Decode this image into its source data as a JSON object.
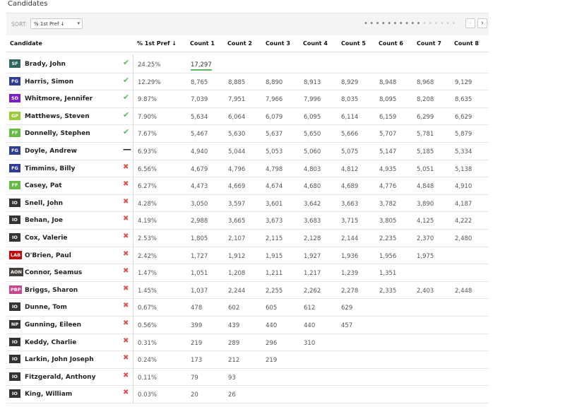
{
  "title": "Candidates",
  "sort": {
    "label": "SORT:",
    "value": "% 1st Pref ↓",
    "caret": "▾"
  },
  "pager": {
    "prev": "‹",
    "next": "›"
  },
  "headers": [
    "Candidate",
    "% 1st Pref ↓",
    "Count 1",
    "Count 2",
    "Count 3",
    "Count 4",
    "Count 5",
    "Count 6",
    "Count 7",
    "Count 8"
  ],
  "status_icons": {
    "elected": "✔",
    "excluded": "✖",
    "pending": "—"
  },
  "party_colors": {
    "SF": "#326760",
    "FG": "#303d97",
    "SD": "#7a20c9",
    "GP": "#99cc33",
    "FF": "#66bb44",
    "IO": "#333333",
    "LAB": "#cc0000",
    "AON": "#44413b",
    "PBP": "#c8468c",
    "NP": "#333333"
  },
  "candidates": [
    {
      "party": "SF",
      "name": "Brady, John",
      "status": "elected",
      "pref": "24.25%",
      "counts": [
        "17,297"
      ]
    },
    {
      "party": "FG",
      "name": "Harris, Simon",
      "status": "elected",
      "pref": "12.29%",
      "counts": [
        "8,765",
        "8,885",
        "8,890",
        "8,913",
        "8,929",
        "8,948",
        "8,968",
        "9,129"
      ]
    },
    {
      "party": "SD",
      "name": "Whitmore, Jennifer",
      "status": "elected",
      "pref": "9.87%",
      "counts": [
        "7,039",
        "7,951",
        "7,966",
        "7,996",
        "8,035",
        "8,095",
        "8,208",
        "8,635"
      ]
    },
    {
      "party": "GP",
      "name": "Matthews, Steven",
      "status": "elected",
      "pref": "7.90%",
      "counts": [
        "5,634",
        "6,064",
        "6,079",
        "6,095",
        "6,114",
        "6,159",
        "6,299",
        "6,629"
      ]
    },
    {
      "party": "FF",
      "name": "Donnelly, Stephen",
      "status": "elected",
      "pref": "7.67%",
      "counts": [
        "5,467",
        "5,630",
        "5,637",
        "5,650",
        "5,666",
        "5,707",
        "5,781",
        "5,879"
      ]
    },
    {
      "party": "FG",
      "name": "Doyle, Andrew",
      "status": "pending",
      "pref": "6.93%",
      "counts": [
        "4,940",
        "5,044",
        "5,053",
        "5,060",
        "5,075",
        "5,147",
        "5,185",
        "5,334"
      ]
    },
    {
      "party": "FG",
      "name": "Timmins, Billy",
      "status": "excluded",
      "pref": "6.56%",
      "counts": [
        "4,679",
        "4,796",
        "4,798",
        "4,803",
        "4,812",
        "4,935",
        "5,051",
        "5,138"
      ]
    },
    {
      "party": "FF",
      "name": "Casey, Pat",
      "status": "excluded",
      "pref": "6.27%",
      "counts": [
        "4,473",
        "4,669",
        "4,674",
        "4,680",
        "4,689",
        "4,776",
        "4,848",
        "4,910"
      ]
    },
    {
      "party": "IO",
      "name": "Snell, John",
      "status": "excluded",
      "pref": "4.28%",
      "counts": [
        "3,050",
        "3,597",
        "3,601",
        "3,642",
        "3,663",
        "3,782",
        "3,890",
        "4,187"
      ]
    },
    {
      "party": "IO",
      "name": "Behan, Joe",
      "status": "excluded",
      "pref": "4.19%",
      "counts": [
        "2,988",
        "3,665",
        "3,673",
        "3,683",
        "3,715",
        "3,805",
        "4,125",
        "4,222"
      ]
    },
    {
      "party": "IO",
      "name": "Cox, Valerie",
      "status": "excluded",
      "pref": "2.53%",
      "counts": [
        "1,805",
        "2,107",
        "2,115",
        "2,128",
        "2,144",
        "2,235",
        "2,370",
        "2,480"
      ]
    },
    {
      "party": "LAB",
      "name": "O'Brien, Paul",
      "status": "excluded",
      "pref": "2.42%",
      "counts": [
        "1,727",
        "1,912",
        "1,915",
        "1,927",
        "1,936",
        "1,956",
        "1,975"
      ]
    },
    {
      "party": "AON",
      "name": "Connor, Seamus",
      "status": "excluded",
      "pref": "1.47%",
      "counts": [
        "1,051",
        "1,208",
        "1,211",
        "1,217",
        "1,239",
        "1,351"
      ]
    },
    {
      "party": "PBP",
      "name": "Briggs, Sharon",
      "status": "excluded",
      "pref": "1.45%",
      "counts": [
        "1,037",
        "2,244",
        "2,255",
        "2,262",
        "2,278",
        "2,335",
        "2,403",
        "2,448"
      ]
    },
    {
      "party": "IO",
      "name": "Dunne, Tom",
      "status": "excluded",
      "pref": "0.67%",
      "counts": [
        "478",
        "602",
        "605",
        "612",
        "629"
      ]
    },
    {
      "party": "NP",
      "name": "Gunning, Eileen",
      "status": "excluded",
      "pref": "0.56%",
      "counts": [
        "399",
        "439",
        "440",
        "440",
        "457"
      ]
    },
    {
      "party": "IO",
      "name": "Keddy, Charlie",
      "status": "excluded",
      "pref": "0.31%",
      "counts": [
        "219",
        "289",
        "296",
        "310"
      ]
    },
    {
      "party": "IO",
      "name": "Larkin, John Joseph",
      "status": "excluded",
      "pref": "0.24%",
      "counts": [
        "173",
        "212",
        "219"
      ]
    },
    {
      "party": "IO",
      "name": "Fitzgerald, Anthony",
      "status": "excluded",
      "pref": "0.11%",
      "counts": [
        "79",
        "93"
      ]
    },
    {
      "party": "IO",
      "name": "King, William",
      "status": "excluded",
      "pref": "0.03%",
      "counts": [
        "20",
        "26"
      ]
    }
  ]
}
